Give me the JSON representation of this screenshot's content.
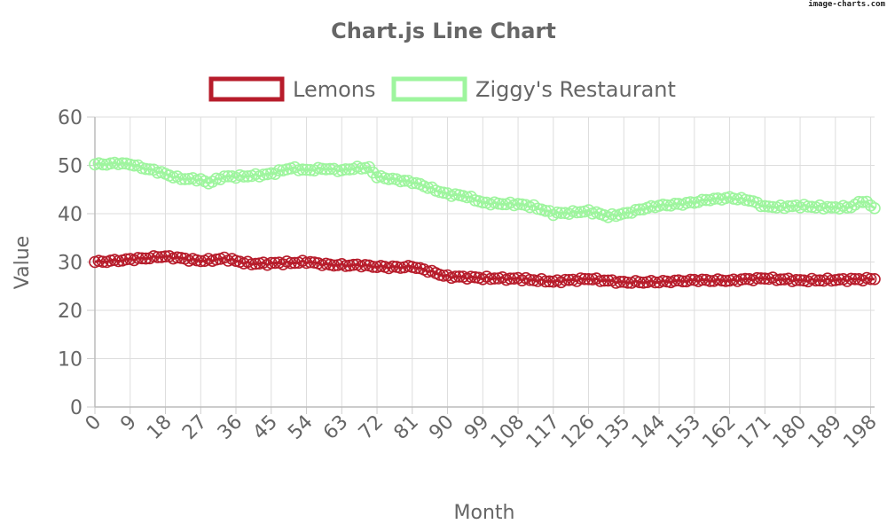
{
  "watermark": "image-charts.com",
  "chart_data": {
    "type": "line",
    "title": "Chart.js Line Chart",
    "xlabel": "Month",
    "ylabel": "Value",
    "ylim": [
      0,
      60
    ],
    "yticks": [
      0,
      10,
      20,
      30,
      40,
      50,
      60
    ],
    "xlim": [
      0,
      199
    ],
    "xticks": [
      0,
      9,
      18,
      27,
      36,
      45,
      54,
      63,
      72,
      81,
      90,
      99,
      108,
      117,
      126,
      135,
      144,
      153,
      162,
      171,
      180,
      189,
      198
    ],
    "grid": true,
    "legend_position": "top",
    "series": [
      {
        "name": "Lemons",
        "color": "#b71c2b",
        "keypoints": [
          [
            0,
            30
          ],
          [
            9,
            30.5
          ],
          [
            18,
            31.2
          ],
          [
            27,
            30.2
          ],
          [
            33,
            30.7
          ],
          [
            40,
            29.6
          ],
          [
            48,
            29.8
          ],
          [
            54,
            30
          ],
          [
            60,
            29.4
          ],
          [
            68,
            29.3
          ],
          [
            75,
            28.9
          ],
          [
            81,
            29
          ],
          [
            85,
            28.2
          ],
          [
            90,
            27
          ],
          [
            99,
            26.7
          ],
          [
            108,
            26.5
          ],
          [
            117,
            26
          ],
          [
            126,
            26.5
          ],
          [
            135,
            25.8
          ],
          [
            144,
            25.9
          ],
          [
            153,
            26.2
          ],
          [
            162,
            26.2
          ],
          [
            171,
            26.6
          ],
          [
            180,
            26.2
          ],
          [
            189,
            26.3
          ],
          [
            199,
            26.5
          ]
        ]
      },
      {
        "name": "Ziggy's Restaurant",
        "color": "#9ef59e",
        "keypoints": [
          [
            0,
            50.2
          ],
          [
            6,
            50.4
          ],
          [
            9,
            50.2
          ],
          [
            16,
            48.7
          ],
          [
            22,
            47.2
          ],
          [
            27,
            47.1
          ],
          [
            29,
            46.3
          ],
          [
            33,
            47.7
          ],
          [
            38,
            47.7
          ],
          [
            45,
            48.2
          ],
          [
            50,
            49.5
          ],
          [
            54,
            49
          ],
          [
            58,
            49.3
          ],
          [
            63,
            49
          ],
          [
            67,
            49.5
          ],
          [
            70,
            49.5
          ],
          [
            72,
            47.7
          ],
          [
            77,
            47
          ],
          [
            81,
            46.5
          ],
          [
            85,
            45.5
          ],
          [
            90,
            44
          ],
          [
            95,
            43.6
          ],
          [
            99,
            42.3
          ],
          [
            104,
            42
          ],
          [
            108,
            42
          ],
          [
            112,
            41.5
          ],
          [
            117,
            40
          ],
          [
            123,
            40.3
          ],
          [
            126,
            40.5
          ],
          [
            131,
            39.5
          ],
          [
            135,
            40
          ],
          [
            140,
            41
          ],
          [
            144,
            41.7
          ],
          [
            150,
            42
          ],
          [
            156,
            42.8
          ],
          [
            162,
            43.3
          ],
          [
            167,
            42.8
          ],
          [
            171,
            41.5
          ],
          [
            175,
            41.4
          ],
          [
            180,
            41.6
          ],
          [
            185,
            41.4
          ],
          [
            189,
            41.2
          ],
          [
            193,
            41.4
          ],
          [
            196,
            42.7
          ],
          [
            199,
            41.2
          ]
        ]
      }
    ]
  }
}
